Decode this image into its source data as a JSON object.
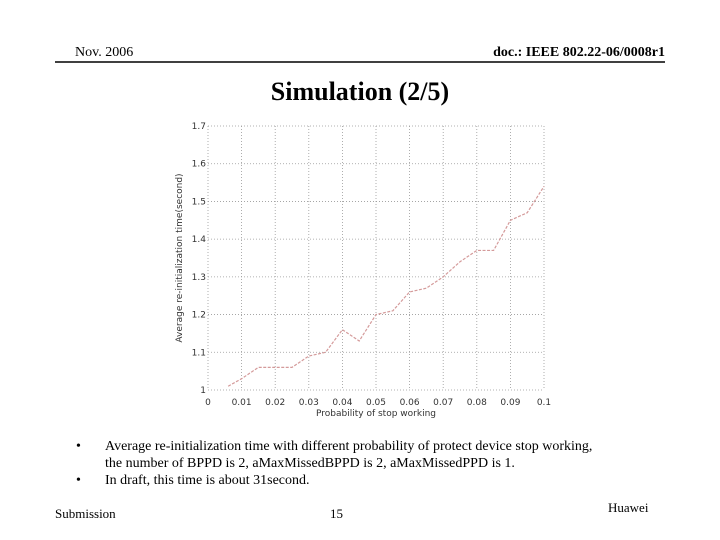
{
  "header": {
    "date": "Nov. 2006",
    "doc": "doc.: IEEE 802.22-06/0008r1"
  },
  "title": "Simulation (2/5)",
  "chart_data": {
    "type": "line",
    "xlabel": "Probability of stop working",
    "ylabel": "Average re-initialization time(second)",
    "x": [
      0.006,
      0.01,
      0.015,
      0.02,
      0.025,
      0.03,
      0.035,
      0.04,
      0.045,
      0.05,
      0.055,
      0.06,
      0.065,
      0.07,
      0.075,
      0.08,
      0.085,
      0.09,
      0.095,
      0.1
    ],
    "series": [
      {
        "color": "#d49a9a",
        "values": [
          1.01,
          1.03,
          1.06,
          1.06,
          1.06,
          1.09,
          1.1,
          1.16,
          1.13,
          1.2,
          1.21,
          1.26,
          1.27,
          1.3,
          1.34,
          1.37,
          1.37,
          1.45,
          1.47,
          1.54
        ]
      }
    ],
    "xlim": [
      0,
      0.1
    ],
    "xticks": [
      0,
      0.01,
      0.02,
      0.03,
      0.04,
      0.05,
      0.06,
      0.07,
      0.08,
      0.09,
      0.1
    ],
    "ylim": [
      1,
      1.7
    ],
    "yticks": [
      1,
      1.1,
      1.2,
      1.3,
      1.4,
      1.5,
      1.6,
      1.7
    ],
    "grid": true
  },
  "bullets": [
    "Average re-initialization time with different probability of protect device stop working, the number of BPPD is 2, aMaxMissedBPPD is 2, aMaxMissedPPD is 1.",
    "In draft, this time is about 31second."
  ],
  "footer": {
    "left": "Submission",
    "page": "15",
    "right": "Huawei"
  }
}
